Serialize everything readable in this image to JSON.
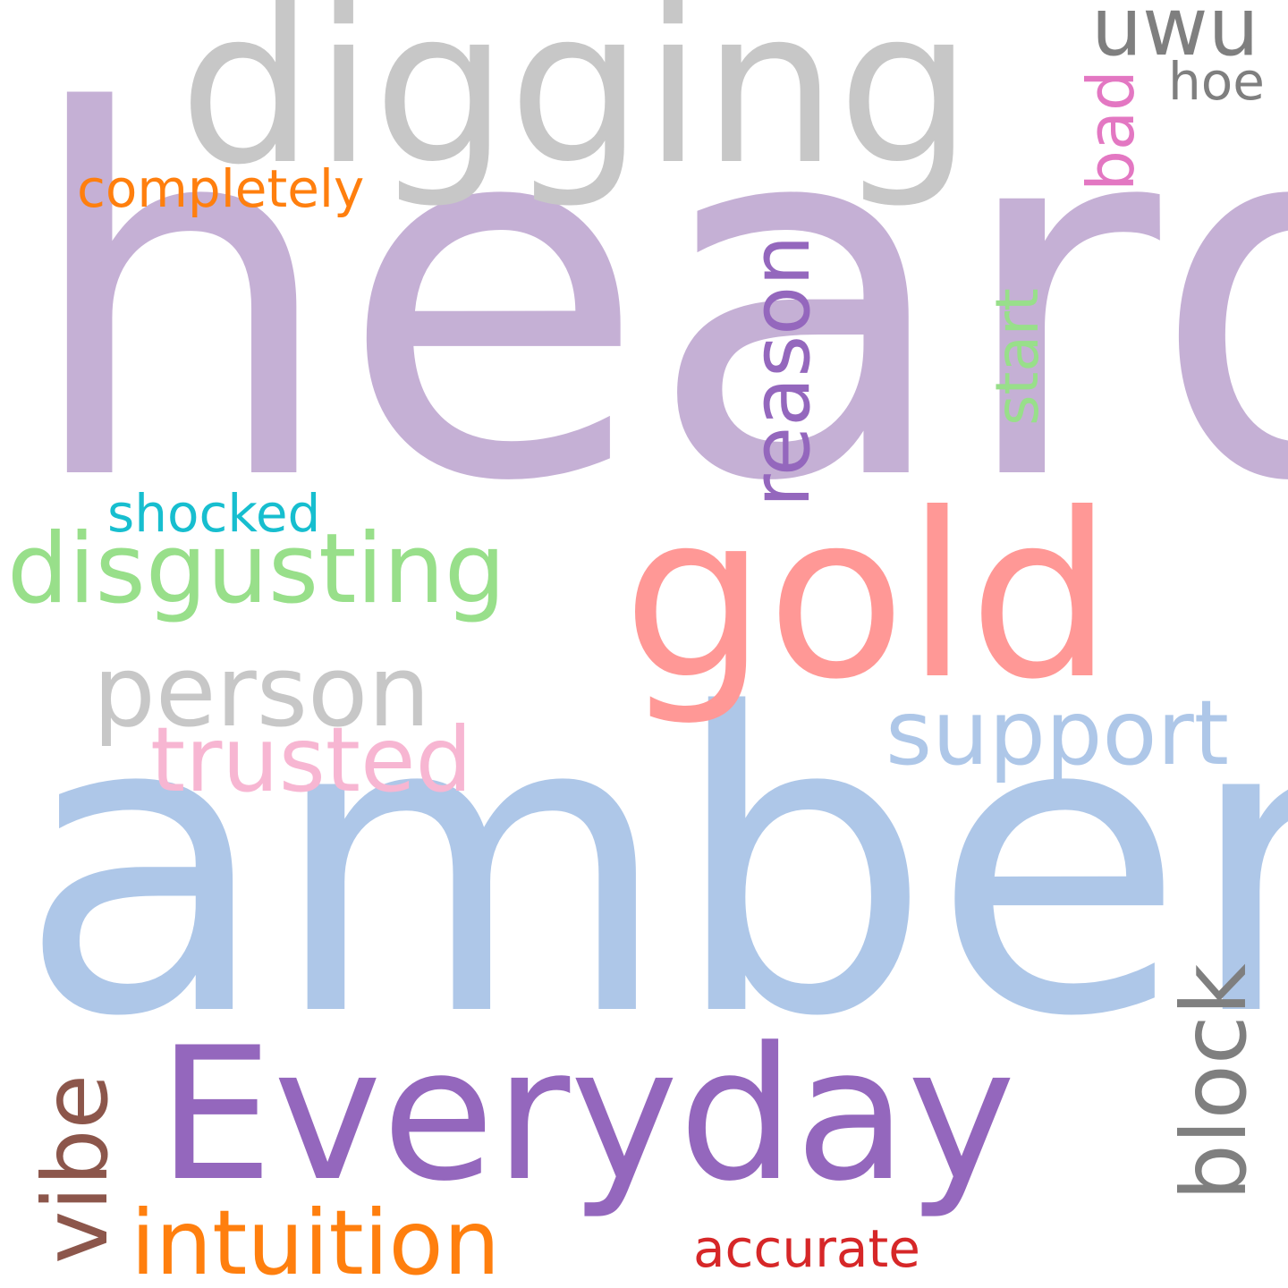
{
  "words": {
    "heard": {
      "text": "heard",
      "color": "#c5b0d5"
    },
    "amber": {
      "text": "amber",
      "color": "#aec7e8"
    },
    "digging": {
      "text": "digging",
      "color": "#c7c7c7"
    },
    "gold": {
      "text": "gold",
      "color": "#ff9896"
    },
    "everyday": {
      "text": "Everyday",
      "color": "#9467bd"
    },
    "disgusting": {
      "text": "disgusting",
      "color": "#98df8a"
    },
    "person": {
      "text": "person",
      "color": "#c7c7c7"
    },
    "support": {
      "text": "support",
      "color": "#aec7e8"
    },
    "trusted": {
      "text": "trusted",
      "color": "#f7b6d2"
    },
    "intuition": {
      "text": "intuition",
      "color": "#ff7f0e"
    },
    "reason": {
      "text": "reason",
      "color": "#9467bd"
    },
    "block": {
      "text": "block",
      "color": "#7f7f7f"
    },
    "vibe": {
      "text": "vibe",
      "color": "#8c564b"
    },
    "uwu": {
      "text": "uwu",
      "color": "#7f7f7f"
    },
    "hoe": {
      "text": "hoe",
      "color": "#7f7f7f"
    },
    "bad": {
      "text": "bad",
      "color": "#e377c2"
    },
    "start": {
      "text": "start",
      "color": "#98df8a"
    },
    "completely": {
      "text": "completely",
      "color": "#ff7f0e"
    },
    "shocked": {
      "text": "shocked",
      "color": "#17becf"
    },
    "accurate": {
      "text": "accurate",
      "color": "#d62728"
    }
  }
}
